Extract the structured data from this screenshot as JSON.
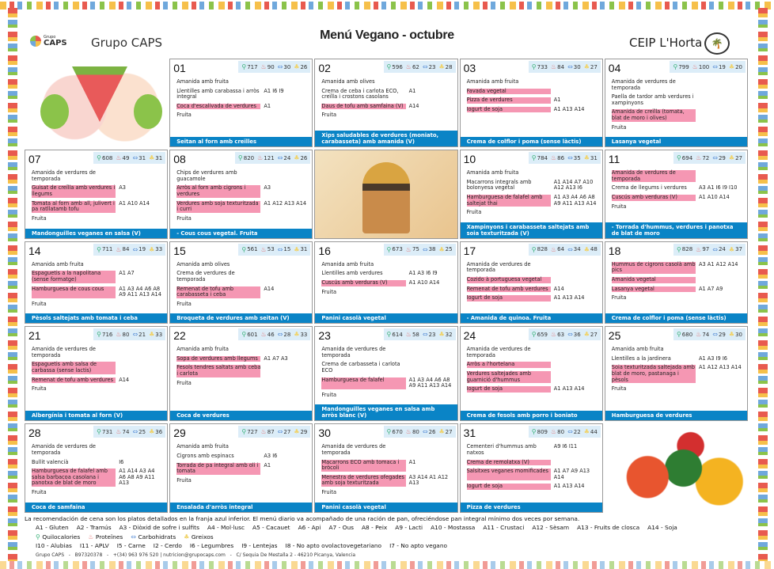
{
  "header": {
    "logo_small": "Grupo",
    "logo_big": "CAPS",
    "brand": "Grupo CAPS",
    "title": "Menú Vegano - octubre",
    "school": "CEIP L'Horta"
  },
  "colors": {
    "dinner_bar": "#0a84c6",
    "highlight": "#f597b3",
    "nutrition_bg": "#dcedf8"
  },
  "nutrition_icons": [
    "kcal-icon",
    "protein-icon",
    "carbs-icon",
    "fat-icon"
  ],
  "days": [
    {
      "num": "01",
      "nutri": [
        717,
        90,
        30,
        26
      ],
      "dishes": [
        {
          "t": "Amanida amb fruita",
          "a": ""
        },
        {
          "t": "Llentilles amb carabassa i arròs integral",
          "a": "A1 I6 I9"
        },
        {
          "t": "Coca d'escalivada de verdures",
          "a": "A1",
          "hl": true
        },
        {
          "t": "Fruita",
          "a": ""
        }
      ],
      "dinner": "Seitan al forn amb creïlles"
    },
    {
      "num": "02",
      "nutri": [
        596,
        62,
        23,
        28
      ],
      "dishes": [
        {
          "t": "Amanida amb olives",
          "a": ""
        },
        {
          "t": "Crema de ceba i carlota ECO, creïlla i crostons casolans",
          "a": "A1"
        },
        {
          "t": "Daus de tofu amb samfaina (V)",
          "a": "A14",
          "hl": true
        },
        {
          "t": "Fruita",
          "a": ""
        }
      ],
      "dinner": "Xips saludables de verdures (moniato, carabasseta) amb amanida (V)"
    },
    {
      "num": "03",
      "nutri": [
        733,
        84,
        30,
        27
      ],
      "dishes": [
        {
          "t": "Amanida amb fruita",
          "a": ""
        },
        {
          "t": "Favada vegetal",
          "a": "",
          "hl": true
        },
        {
          "t": "Pizza de verdures",
          "a": "A1",
          "hl": true
        },
        {
          "t": "Iogurt de soja",
          "a": "A1 A13 A14",
          "hl": true
        }
      ],
      "dinner": "Crema de colflor i poma (sense làctis)"
    },
    {
      "num": "04",
      "nutri": [
        799,
        100,
        19,
        20
      ],
      "dishes": [
        {
          "t": "Amanida de verdures de temporada",
          "a": ""
        },
        {
          "t": "Paella de tardor amb verdures i xampinyons",
          "a": ""
        },
        {
          "t": "Amanida de creïlla (tomata, blat de moro i olives)",
          "a": "",
          "hl": true
        },
        {
          "t": "Fruita",
          "a": ""
        }
      ],
      "dinner": "Lasanya vegetal"
    },
    {
      "num": "07",
      "nutri": [
        608,
        49,
        31,
        31
      ],
      "dishes": [
        {
          "t": "Amanida de verdures de temporada",
          "a": ""
        },
        {
          "t": "Guisat de creïlla amb verdures i llegums",
          "a": "A3",
          "hl": true
        },
        {
          "t": "Tomata al forn amb all, julivert i pa ratllatamb tofu",
          "a": "A1 A10 A14",
          "hl": true
        },
        {
          "t": "Fruita",
          "a": ""
        }
      ],
      "dinner": "Mandonguilles veganes en salsa (V)"
    },
    {
      "num": "08",
      "nutri": [
        820,
        121,
        24,
        26
      ],
      "dishes": [
        {
          "t": "Chips de verdures amb guacamole",
          "a": ""
        },
        {
          "t": "Arròs al forn amb cigrons i verdures",
          "a": "A3",
          "hl": true
        },
        {
          "t": "Verdures amb soja texturitzada i curri",
          "a": "A1 A12 A13 A14",
          "hl": true
        },
        {
          "t": "Fruita",
          "a": ""
        }
      ],
      "dinner": "- Cous cous vegetal. Fruita"
    },
    {
      "num": "10",
      "nutri": [
        784,
        86,
        35,
        31
      ],
      "dishes": [
        {
          "t": "Amanida amb fruita",
          "a": ""
        },
        {
          "t": "Macarrons integrals amb bolonyesa vegetal",
          "a": "A1 A14 A7 A10 A12 A13 I6"
        },
        {
          "t": "Hamburguesa de falafel amb saltejat thai",
          "a": "A1 A3 A4 A6 A8 A9 A11 A13 A14",
          "hl": true
        },
        {
          "t": "Fruita",
          "a": ""
        }
      ],
      "dinner": "Xampinyons i carabasseta saltejats amb soia texturitzada (V)"
    },
    {
      "num": "11",
      "nutri": [
        694,
        72,
        29,
        27
      ],
      "dishes": [
        {
          "t": "Amanida de verdures de temporada",
          "a": "",
          "hl": true
        },
        {
          "t": "Crema de llegums i verdures",
          "a": "A3 A1 I6 I9 I10"
        },
        {
          "t": "Cuscús amb verduras (V)",
          "a": "A1 A10 A14",
          "hl": true
        },
        {
          "t": "Fruita",
          "a": ""
        }
      ],
      "dinner": "- Torrada d'hummus, verdures i panotxa de blat de moro"
    },
    {
      "num": "14",
      "nutri": [
        711,
        84,
        19,
        33
      ],
      "dishes": [
        {
          "t": "Amanida amb fruita",
          "a": ""
        },
        {
          "t": "Espaguetis a la napolitana (sense formatge)",
          "a": "A1 A7",
          "hl": true
        },
        {
          "t": "Hamburguesa de cous cous",
          "a": "A1 A3 A4 A6 A8 A9 A11 A13 A14",
          "hl": true
        },
        {
          "t": "Fruita",
          "a": ""
        }
      ],
      "dinner": "Pèsols saltejats amb tomata i ceba"
    },
    {
      "num": "15",
      "nutri": [
        561,
        53,
        15,
        31
      ],
      "dishes": [
        {
          "t": "Amanida amb olives",
          "a": ""
        },
        {
          "t": "Crema de verdures de temporada",
          "a": ""
        },
        {
          "t": "Remenat de tofu amb carabasseta i ceba",
          "a": "A14",
          "hl": true
        },
        {
          "t": "Fruita",
          "a": ""
        }
      ],
      "dinner": "Broqueta de verdures amb seitan (V)"
    },
    {
      "num": "16",
      "nutri": [
        673,
        75,
        38,
        25
      ],
      "dishes": [
        {
          "t": "Amanida amb fruita",
          "a": ""
        },
        {
          "t": "Llentilles amb verdures",
          "a": "A1 A3 I6 I9"
        },
        {
          "t": "Cuscús amb verduras (V)",
          "a": "A1 A10 A14",
          "hl": true
        },
        {
          "t": "Fruita",
          "a": ""
        }
      ],
      "dinner": "Panini casolà vegetal"
    },
    {
      "num": "17",
      "nutri": [
        828,
        64,
        34,
        48
      ],
      "dishes": [
        {
          "t": "Amanida de verdures de temporada",
          "a": ""
        },
        {
          "t": "Cozido à portuguesa vegetal",
          "a": "",
          "hl": true
        },
        {
          "t": "Remenat de tofu amb verdures",
          "a": "A14",
          "hl": true
        },
        {
          "t": "Iogurt de soja",
          "a": "A1 A13 A14",
          "hl": true
        }
      ],
      "dinner": "- Amanida de quinoa. Fruita"
    },
    {
      "num": "18",
      "nutri": [
        828,
        97,
        24,
        37
      ],
      "dishes": [
        {
          "t": "Hummus de cigrons casolà amb pics",
          "a": "A3 A1 A12 A14",
          "hl": true
        },
        {
          "t": "Amanida vegetal",
          "a": "",
          "hl": true
        },
        {
          "t": "Lasanya vegetal",
          "a": "A1 A7 A9",
          "hl": true
        },
        {
          "t": "Fruita",
          "a": ""
        }
      ],
      "dinner": "Crema de colflor i poma (sense làctis)"
    },
    {
      "num": "21",
      "nutri": [
        716,
        80,
        21,
        33
      ],
      "dishes": [
        {
          "t": "Amanida de verdures de temporada",
          "a": ""
        },
        {
          "t": "Espaguetis amb salsa de carbassa (sense lactis)",
          "a": "",
          "hl": true
        },
        {
          "t": "Remenat de tofu amb verdures",
          "a": "A14",
          "hl": true
        },
        {
          "t": "Fruita",
          "a": ""
        }
      ],
      "dinner": "Albergínia i tomata al forn (V)"
    },
    {
      "num": "22",
      "nutri": [
        601,
        46,
        28,
        33
      ],
      "dishes": [
        {
          "t": "Amanida amb fruita",
          "a": ""
        },
        {
          "t": "Sopa de verdures amb llegums",
          "a": "A1 A7 A3",
          "hl": true
        },
        {
          "t": "Fesols tendres saltats amb ceba i carlota",
          "a": "",
          "hl": true
        },
        {
          "t": "Fruita",
          "a": ""
        }
      ],
      "dinner": "Coca de verdures"
    },
    {
      "num": "23",
      "nutri": [
        614,
        58,
        23,
        32
      ],
      "dishes": [
        {
          "t": "Amanida de verdures de temporada",
          "a": ""
        },
        {
          "t": "Crema de carbasseta i carlota ECO",
          "a": ""
        },
        {
          "t": "Hamburguesa de falafel",
          "a": "A1 A3 A4 A6 A8 A9 A11 A13 A14",
          "hl": true
        },
        {
          "t": "Fruita",
          "a": ""
        }
      ],
      "dinner": "Mandonguilles veganes en salsa amb arròs blanc (V)"
    },
    {
      "num": "24",
      "nutri": [
        659,
        63,
        36,
        27
      ],
      "dishes": [
        {
          "t": "Amanida de verdures de temporada",
          "a": ""
        },
        {
          "t": "Arròs a l'hortelana",
          "a": "",
          "hl": true
        },
        {
          "t": "Verdures saltejades amb guarnició d'hummus",
          "a": "",
          "hl": true
        },
        {
          "t": "Iogurt de soja",
          "a": "A1 A13 A14",
          "hl": true
        }
      ],
      "dinner": "Crema de fesols amb porro i boniato"
    },
    {
      "num": "25",
      "nutri": [
        680,
        74,
        29,
        30
      ],
      "dishes": [
        {
          "t": "Amanida amb fruita",
          "a": ""
        },
        {
          "t": "Llentilles a la jardinera",
          "a": "A1 A3 I9 I6"
        },
        {
          "t": "Soia texturitzada saltejada amb blat de moro, pastanaga i pèsols",
          "a": "A1 A12 A13 A14",
          "hl": true
        },
        {
          "t": "Fruita",
          "a": ""
        }
      ],
      "dinner": "Hamburguesa de verdures"
    },
    {
      "num": "28",
      "nutri": [
        731,
        74,
        25,
        36
      ],
      "dishes": [
        {
          "t": "Amanida de verdures de temporada",
          "a": ""
        },
        {
          "t": "Bullit valencià",
          "a": "I6"
        },
        {
          "t": "Hamburguesa de falafel amb salsa barbacoa casolana i panotxa de blat de moro",
          "a": "A1 A14 A3 A4 A6 A8 A9 A11 A13",
          "hl": true
        },
        {
          "t": "Fruita",
          "a": ""
        }
      ],
      "dinner": "Coca de samfaina"
    },
    {
      "num": "29",
      "nutri": [
        727,
        87,
        27,
        29
      ],
      "dishes": [
        {
          "t": "Amanida amb fruita",
          "a": ""
        },
        {
          "t": "Cigrons amb espinacs",
          "a": "A3 I6"
        },
        {
          "t": "Torrada de pa integral amb oli i tomata",
          "a": "A1",
          "hl": true
        },
        {
          "t": "Fruita",
          "a": ""
        }
      ],
      "dinner": "Ensalada d'arròs integral"
    },
    {
      "num": "30",
      "nutri": [
        670,
        80,
        26,
        27
      ],
      "dishes": [
        {
          "t": "Amanida de verdures de temporada",
          "a": ""
        },
        {
          "t": "Macarrons ECO amb tomaca i bròcoli",
          "a": "A1",
          "hl": true
        },
        {
          "t": "Menestra de verdures ofegades amb soja texturitzada",
          "a": "A3 A14 A1 A12 A13",
          "hl": true
        },
        {
          "t": "Fruita",
          "a": ""
        }
      ],
      "dinner": "Panini casolà vegetal"
    },
    {
      "num": "31",
      "nutri": [
        809,
        80,
        22,
        44
      ],
      "dishes": [
        {
          "t": "Cementeri d'hummus amb natxos",
          "a": "A9 I6 I11"
        },
        {
          "t": "Crema de remolatxa (V)",
          "a": "",
          "hl": true
        },
        {
          "t": "Salsitxes veganes momificades",
          "a": "A1 A7 A9 A13 A14",
          "hl": true
        },
        {
          "t": "Iogurt de soja",
          "a": "A1 A13 A14",
          "hl": true
        }
      ],
      "dinner": "Pizza de verdures"
    }
  ],
  "footer": {
    "note": "La recomendación de cena son los platos detallados en la franja azul inferior. El menú diario va acompañado de una ración de pan, ofreciéndose pan integral mínimo dos veces por semana.",
    "allergens": [
      "A1 - Gluten",
      "A2 - Tramús",
      "A3 - Diòxid de sofre i sulfits",
      "A4 - Mol·lusc",
      "A5 - Cacauet",
      "A6 - Api",
      "A7 - Ous",
      "A8 - Peix",
      "A9 - Lacti",
      "A10 - Mostassa",
      "A11 - Crustaci",
      "A12 - Sèsam",
      "A13 - Fruits de closca",
      "A14 - Soja"
    ],
    "nutrients": [
      "Quilocalories",
      "Proteïnes",
      "Carbohidrats",
      "Greixos"
    ],
    "codes": [
      "I10 - Alubias",
      "I11 - APLV",
      "I5 - Carne",
      "I2 - Cerdo",
      "I6 - Legumbres",
      "I9 - Lentejas",
      "I8 - No apto ovolactovegetariano",
      "I7 - No apto vegano"
    ],
    "contact": "Grupo CAPS   -   B97320378   -   +(34) 963 976 520 | nutricion@grupocaps.com   -   C/ Sequia De Mestalla 2 - 46210 Picanya, Valencia"
  }
}
